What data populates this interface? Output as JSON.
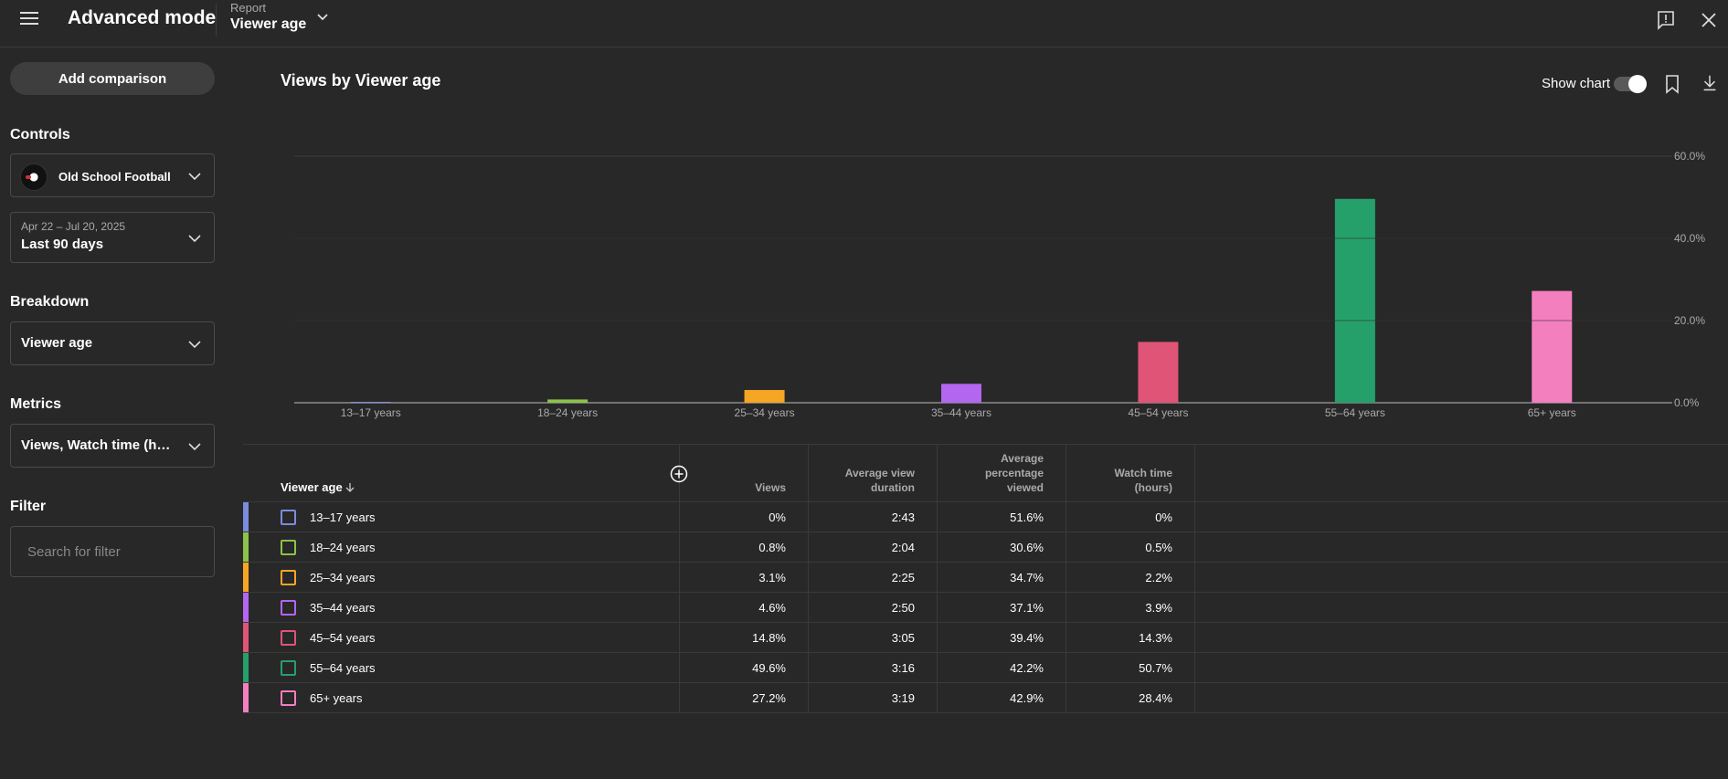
{
  "header": {
    "app_title": "Advanced mode",
    "report_label": "Report",
    "report_value": "Viewer age"
  },
  "sidebar": {
    "add_comparison": "Add comparison",
    "controls_title": "Controls",
    "channel_name": "Old School Football",
    "date_range": "Apr 22 – Jul 20, 2025",
    "date_preset": "Last 90 days",
    "breakdown_title": "Breakdown",
    "breakdown_value": "Viewer age",
    "metrics_title": "Metrics",
    "metrics_value": "Views, Watch time (hours)",
    "filter_title": "Filter",
    "filter_placeholder": "Search for filter"
  },
  "main": {
    "chart_title": "Views by Viewer age",
    "show_chart_label": "Show chart"
  },
  "chart_data": {
    "type": "bar",
    "categories": [
      "13–17 years",
      "18–24 years",
      "25–34 years",
      "35–44 years",
      "45–54 years",
      "55–64 years",
      "65+ years"
    ],
    "values": [
      0,
      0.8,
      3.1,
      4.6,
      14.8,
      49.6,
      27.2
    ],
    "colors": [
      "#7b8cde",
      "#8bc34a",
      "#f5a623",
      "#b366f0",
      "#e05478",
      "#26a06b",
      "#f47fbf"
    ],
    "y_ticks": [
      "0.0%",
      "20.0%",
      "40.0%",
      "60.0%"
    ],
    "ylim": [
      0,
      60
    ],
    "grid": true
  },
  "table": {
    "headers": {
      "dimension": "Viewer age",
      "views": "Views",
      "avg_view_duration": [
        "Average view",
        "duration"
      ],
      "avg_pct_viewed": [
        "Average",
        "percentage",
        "viewed"
      ],
      "watch_time": [
        "Watch time",
        "(hours)"
      ]
    },
    "rows": [
      {
        "label": "13–17 years",
        "views": "0%",
        "duration": "2:43",
        "pct": "51.6%",
        "watch": "0%"
      },
      {
        "label": "18–24 years",
        "views": "0.8%",
        "duration": "2:04",
        "pct": "30.6%",
        "watch": "0.5%"
      },
      {
        "label": "25–34 years",
        "views": "3.1%",
        "duration": "2:25",
        "pct": "34.7%",
        "watch": "2.2%"
      },
      {
        "label": "35–44 years",
        "views": "4.6%",
        "duration": "2:50",
        "pct": "37.1%",
        "watch": "3.9%"
      },
      {
        "label": "45–54 years",
        "views": "14.8%",
        "duration": "3:05",
        "pct": "39.4%",
        "watch": "14.3%"
      },
      {
        "label": "55–64 years",
        "views": "49.6%",
        "duration": "3:16",
        "pct": "42.2%",
        "watch": "50.7%"
      },
      {
        "label": "65+ years",
        "views": "27.2%",
        "duration": "3:19",
        "pct": "42.9%",
        "watch": "28.4%"
      }
    ]
  }
}
